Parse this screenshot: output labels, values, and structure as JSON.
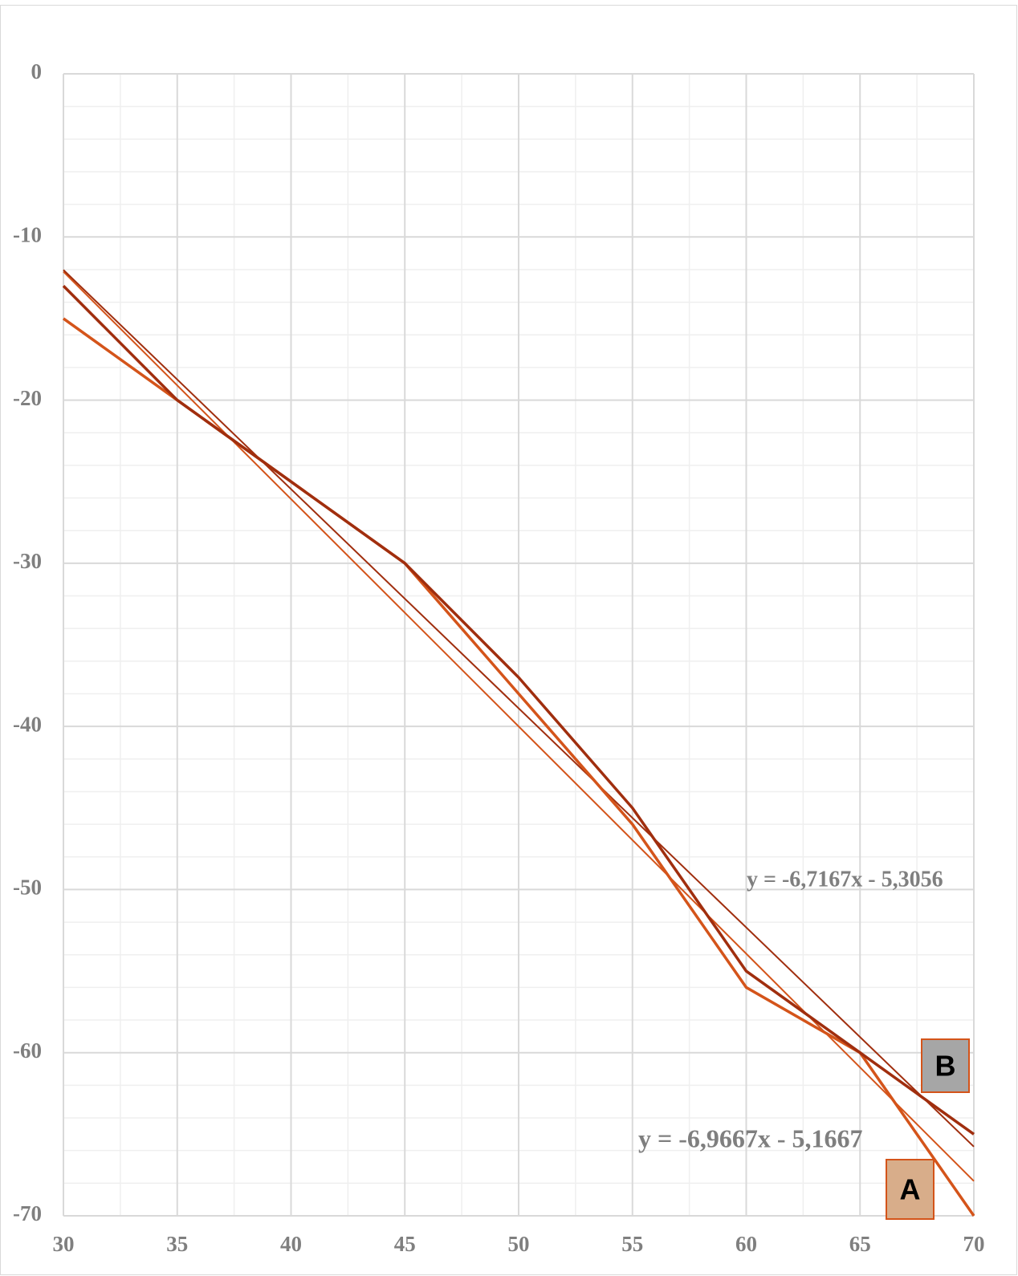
{
  "chart_data": {
    "type": "line",
    "x": [
      30,
      35,
      40,
      45,
      50,
      55,
      60,
      65,
      70
    ],
    "series": [
      {
        "name": "A",
        "color": "#d4541a",
        "values": [
          -15,
          -20,
          -25,
          -30,
          -38,
          -46,
          -56,
          -60,
          -70
        ]
      },
      {
        "name": "B",
        "color": "#a02e0e",
        "values": [
          -13,
          -20,
          -25,
          -30,
          -37,
          -45,
          -55,
          -60,
          -65
        ]
      }
    ],
    "trendlines": [
      {
        "x": [
          30,
          70
        ],
        "color": "#d4541a",
        "values": [
          -12.13,
          -67.87
        ]
      },
      {
        "x": [
          30,
          70
        ],
        "color": "#a02e0e",
        "values": [
          -12.02,
          -65.76
        ]
      }
    ],
    "annotations": [
      "y = -6,7167x - 5,3056",
      "y = -6,9667x - 5,1667"
    ],
    "labels": [
      {
        "text": "A",
        "fill": "#d8ad8a",
        "stroke": "#d4541a"
      },
      {
        "text": "B",
        "fill": "#a6a6a6",
        "stroke": "#d4541a"
      }
    ],
    "xlim": [
      30,
      70
    ],
    "xticks": [
      30,
      35,
      40,
      45,
      50,
      55,
      60,
      65,
      70
    ],
    "ylim": [
      -70,
      0
    ],
    "yticks": [
      0,
      -10,
      -20,
      -30,
      -40,
      -50,
      -60,
      -70
    ],
    "x_minor_ticks": [
      32.5,
      37.5,
      42.5,
      47.5,
      52.5,
      57.5,
      62.5,
      67.5
    ],
    "y_minor_ticks": [
      -2,
      -4,
      -6,
      -8,
      -12,
      -14,
      -16,
      -18,
      -22,
      -24,
      -26,
      -28,
      -32,
      -34,
      -36,
      -38,
      -42,
      -44,
      -46,
      -48,
      -52,
      -54,
      -56,
      -58,
      -62,
      -64,
      -66,
      -68
    ],
    "grid": true
  }
}
